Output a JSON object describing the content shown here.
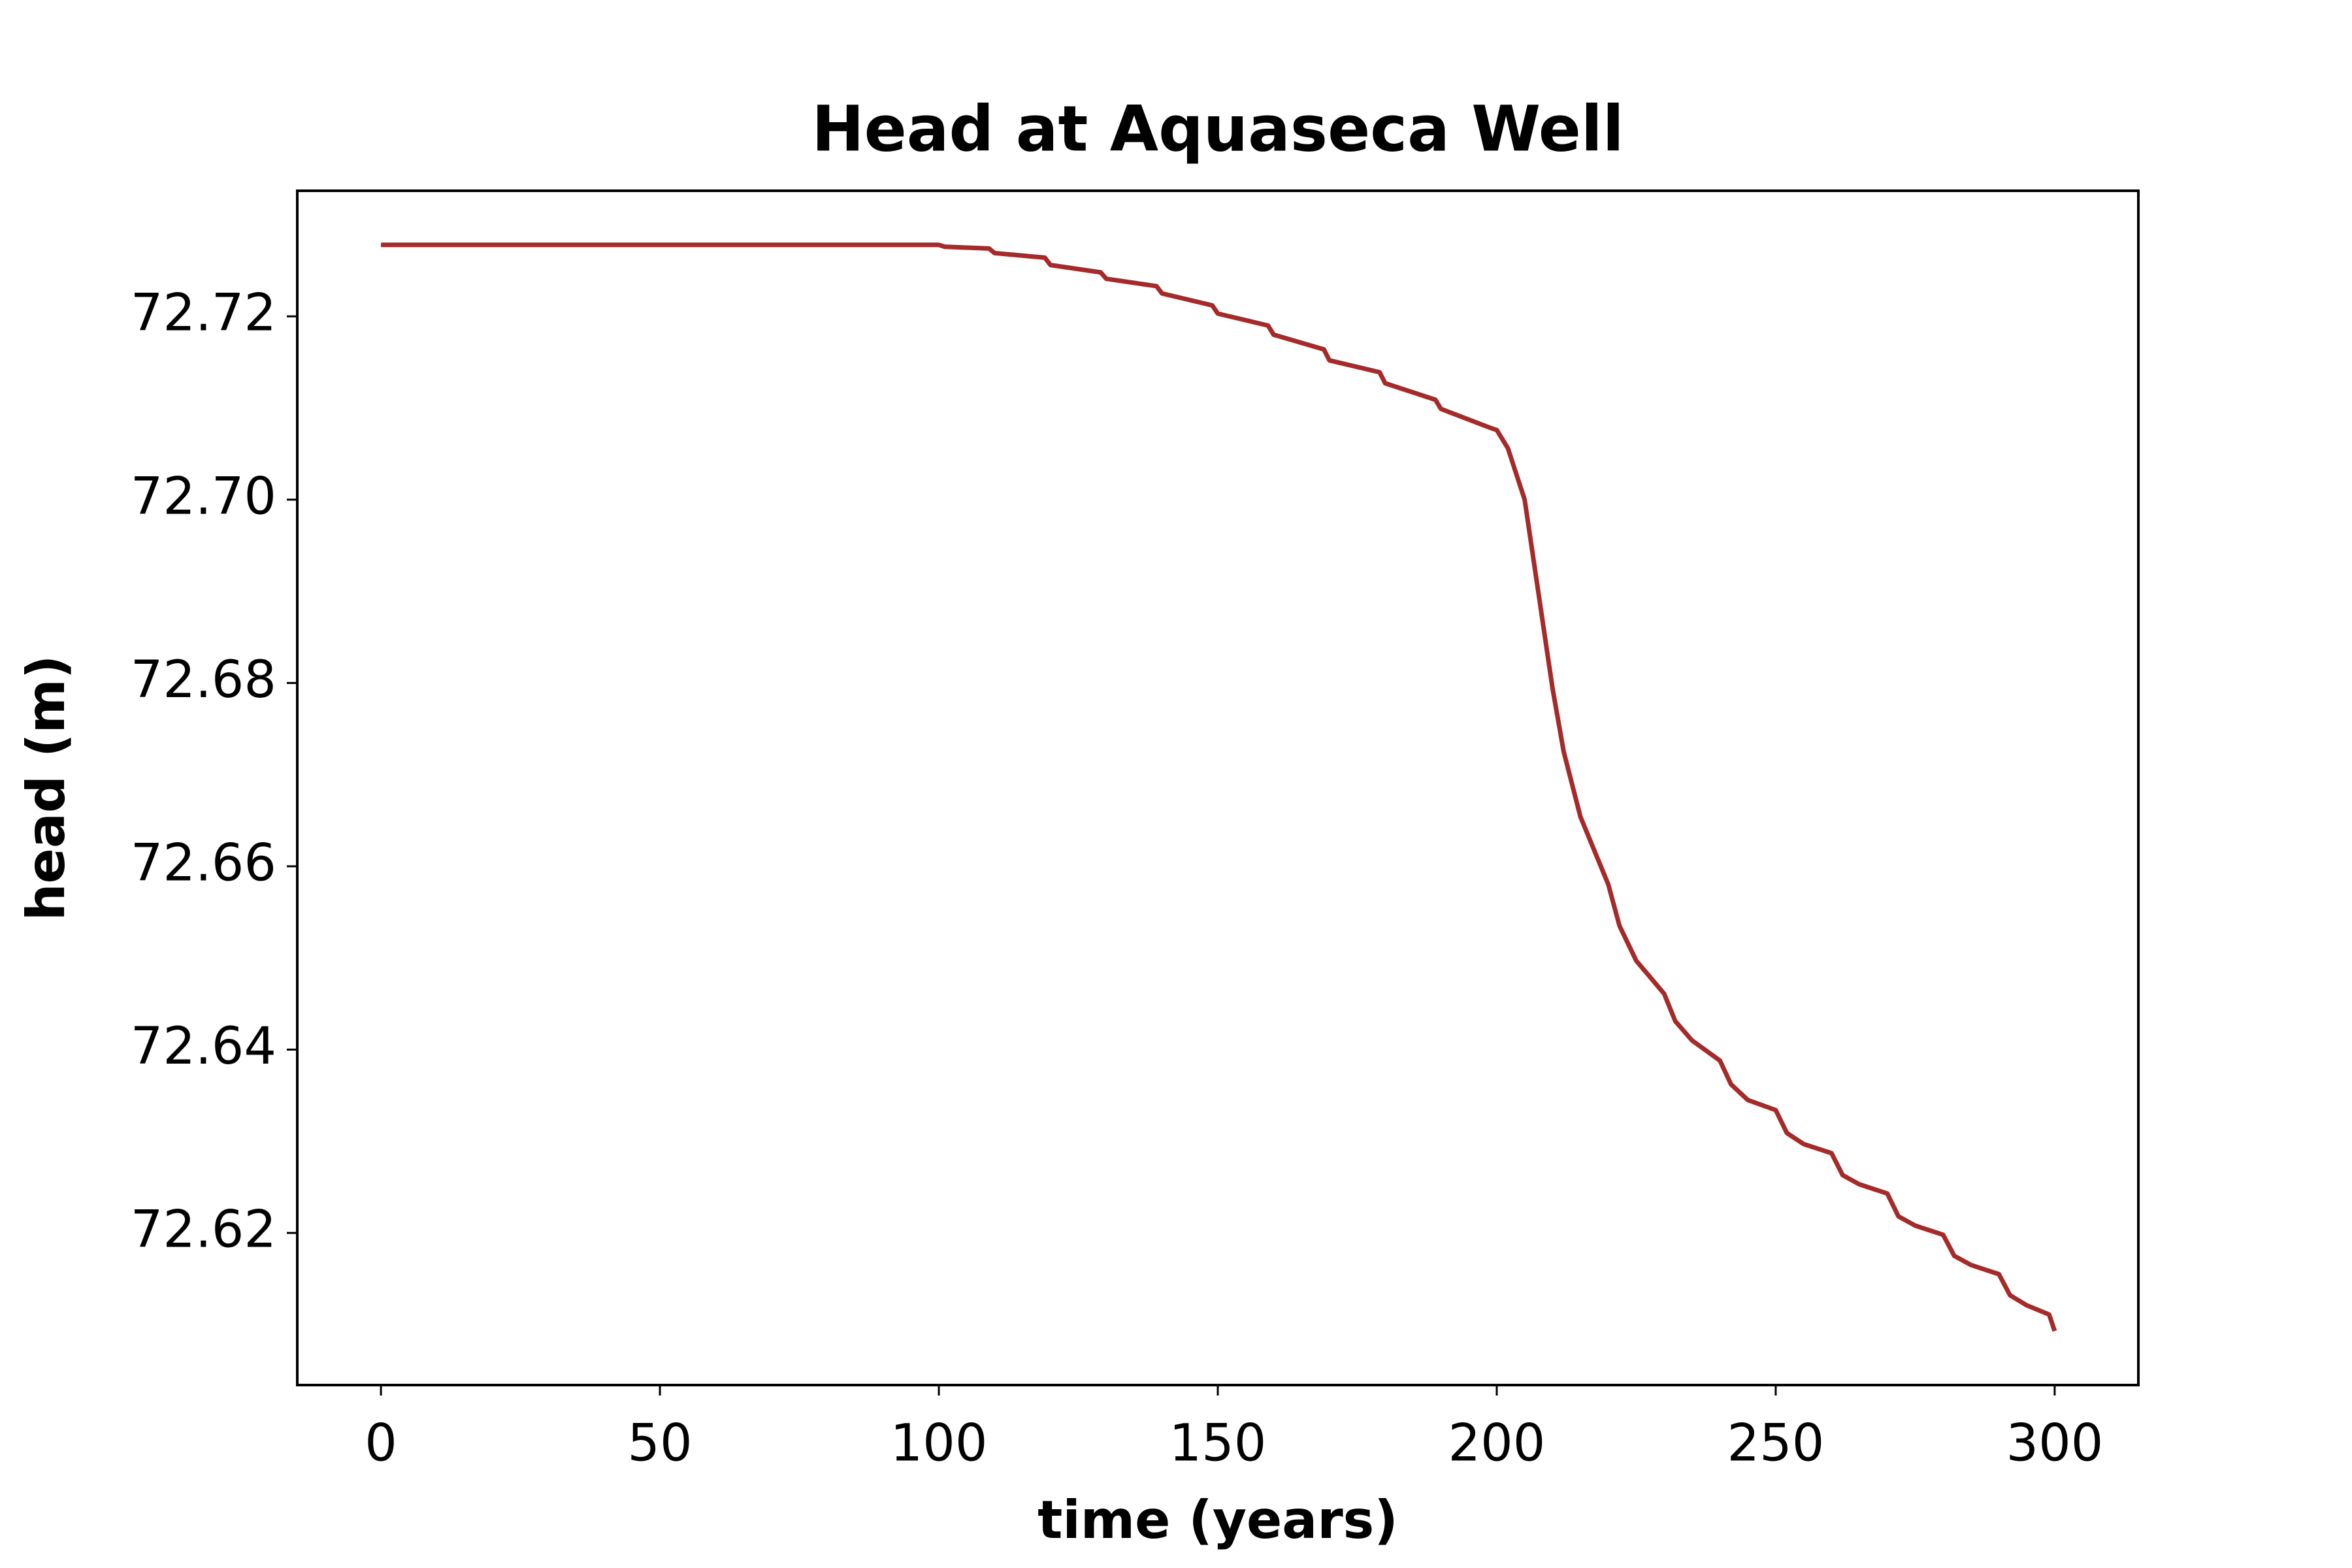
{
  "chart_data": {
    "type": "line",
    "title": "Head at Aquaseca Well",
    "x_label": "time (years)",
    "y_label": "head (m)",
    "series": [
      {
        "name": "head",
        "color": "#a52a2a",
        "x": [
          0,
          50,
          99,
          100,
          101,
          109,
          110,
          119,
          120,
          129,
          130,
          139,
          140,
          149,
          150,
          159,
          160,
          169,
          170,
          179,
          180,
          189,
          190,
          199,
          200,
          202,
          205,
          210,
          212,
          215,
          220,
          222,
          225,
          230,
          232,
          235,
          240,
          242,
          245,
          250,
          252,
          255,
          260,
          262,
          265,
          270,
          272,
          275,
          280,
          282,
          285,
          290,
          292,
          295,
          299,
          300
        ],
        "values": [
          72.7278,
          72.7278,
          72.7278,
          72.7278,
          72.7276,
          72.7274,
          72.7269,
          72.7264,
          72.7256,
          72.7248,
          72.7241,
          72.7233,
          72.7225,
          72.7212,
          72.7203,
          72.719,
          72.718,
          72.7164,
          72.7152,
          72.7139,
          72.7127,
          72.7109,
          72.7099,
          72.7078,
          72.7076,
          72.7056,
          72.7,
          72.6794,
          72.6725,
          72.6654,
          72.658,
          72.6535,
          72.6497,
          72.6461,
          72.6431,
          72.641,
          72.6388,
          72.6362,
          72.6345,
          72.6334,
          72.6309,
          72.6297,
          72.6287,
          72.6263,
          72.6253,
          72.6243,
          72.6218,
          72.6208,
          72.6198,
          72.6175,
          72.6165,
          72.6155,
          72.6132,
          72.6121,
          72.6111,
          72.6093
        ]
      }
    ],
    "xlim": [
      -15,
      315
    ],
    "xticks": [
      0,
      50,
      100,
      150,
      200,
      250,
      300
    ],
    "ylim": [
      72.6034,
      72.7337
    ],
    "yticks": [
      72.62,
      72.64,
      72.66,
      72.68,
      {
        "value": 72.7,
        "label": "72.70"
      },
      72.72
    ],
    "grid": false
  }
}
